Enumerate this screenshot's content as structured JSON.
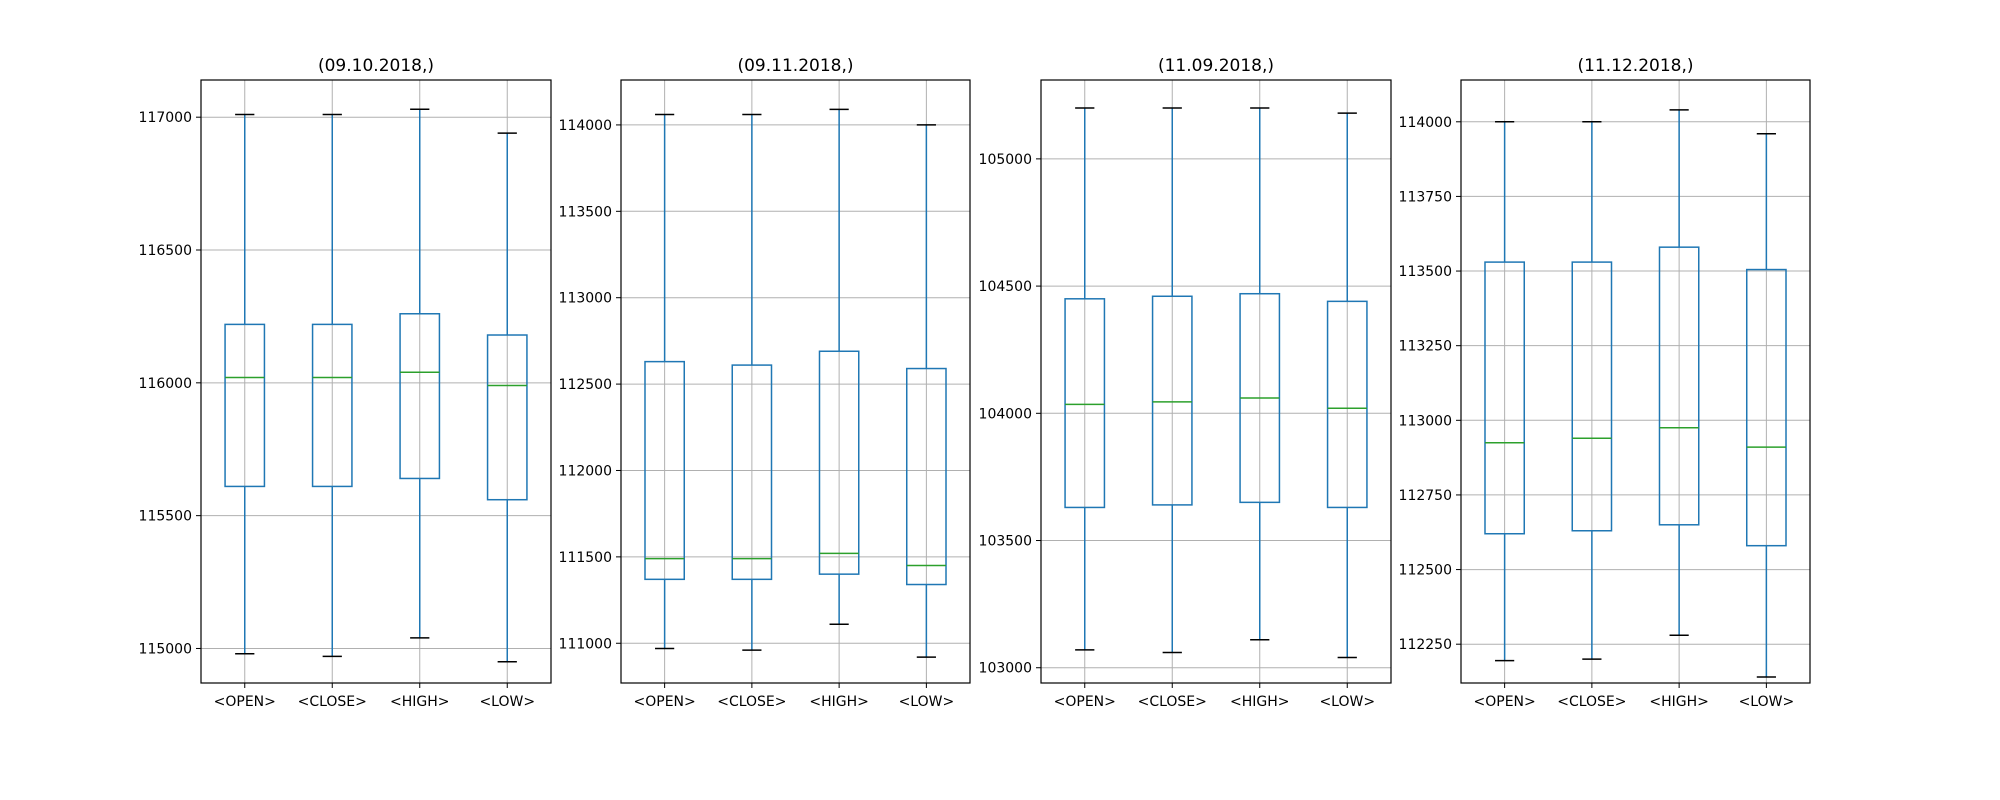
{
  "colors": {
    "box": "#1f77b4",
    "median": "#2ca02c",
    "cap": "#000000",
    "grid": "#b0b0b0",
    "frame": "#000000"
  },
  "chart_data": [
    {
      "type": "boxplot",
      "title": "(09.10.2018,)",
      "categories": [
        "<OPEN>",
        "<CLOSE>",
        "<HIGH>",
        "<LOW>"
      ],
      "ylim": [
        114870,
        117140
      ],
      "yticks": [
        115000,
        115500,
        116000,
        116500,
        117000
      ],
      "grid": true,
      "boxes": [
        {
          "whislo": 114980,
          "q1": 115610,
          "med": 116020,
          "q3": 116220,
          "whishi": 117010
        },
        {
          "whislo": 114970,
          "q1": 115610,
          "med": 116020,
          "q3": 116220,
          "whishi": 117010
        },
        {
          "whislo": 115040,
          "q1": 115640,
          "med": 116040,
          "q3": 116260,
          "whishi": 117030
        },
        {
          "whislo": 114950,
          "q1": 115560,
          "med": 115990,
          "q3": 116180,
          "whishi": 116940
        }
      ]
    },
    {
      "type": "boxplot",
      "title": "(09.11.2018,)",
      "categories": [
        "<OPEN>",
        "<CLOSE>",
        "<HIGH>",
        "<LOW>"
      ],
      "ylim": [
        110770,
        114260
      ],
      "yticks": [
        111000,
        111500,
        112000,
        112500,
        113000,
        113500,
        114000
      ],
      "grid": true,
      "boxes": [
        {
          "whislo": 110970,
          "q1": 111370,
          "med": 111490,
          "q3": 112630,
          "whishi": 114060
        },
        {
          "whislo": 110960,
          "q1": 111370,
          "med": 111490,
          "q3": 112610,
          "whishi": 114060
        },
        {
          "whislo": 111110,
          "q1": 111400,
          "med": 111520,
          "q3": 112690,
          "whishi": 114090
        },
        {
          "whislo": 110920,
          "q1": 111340,
          "med": 111450,
          "q3": 112590,
          "whishi": 114000
        }
      ]
    },
    {
      "type": "boxplot",
      "title": "(11.09.2018,)",
      "categories": [
        "<OPEN>",
        "<CLOSE>",
        "<HIGH>",
        "<LOW>"
      ],
      "ylim": [
        102940,
        105310
      ],
      "yticks": [
        103000,
        103500,
        104000,
        104500,
        105000
      ],
      "grid": true,
      "boxes": [
        {
          "whislo": 103070,
          "q1": 103630,
          "med": 104035,
          "q3": 104450,
          "whishi": 105200
        },
        {
          "whislo": 103060,
          "q1": 103640,
          "med": 104045,
          "q3": 104460,
          "whishi": 105200
        },
        {
          "whislo": 103110,
          "q1": 103650,
          "med": 104060,
          "q3": 104470,
          "whishi": 105200
        },
        {
          "whislo": 103040,
          "q1": 103630,
          "med": 104020,
          "q3": 104440,
          "whishi": 105180
        }
      ]
    },
    {
      "type": "boxplot",
      "title": "(11.12.2018,)",
      "categories": [
        "<OPEN>",
        "<CLOSE>",
        "<HIGH>",
        "<LOW>"
      ],
      "ylim": [
        112120,
        114140
      ],
      "yticks": [
        112250,
        112500,
        112750,
        113000,
        113250,
        113500,
        113750,
        114000
      ],
      "grid": true,
      "boxes": [
        {
          "whislo": 112195,
          "q1": 112620,
          "med": 112925,
          "q3": 113530,
          "whishi": 114000
        },
        {
          "whislo": 112200,
          "q1": 112630,
          "med": 112940,
          "q3": 113530,
          "whishi": 114000
        },
        {
          "whislo": 112280,
          "q1": 112650,
          "med": 112975,
          "q3": 113580,
          "whishi": 114040
        },
        {
          "whislo": 112140,
          "q1": 112580,
          "med": 112910,
          "q3": 113505,
          "whishi": 113960
        }
      ]
    }
  ]
}
